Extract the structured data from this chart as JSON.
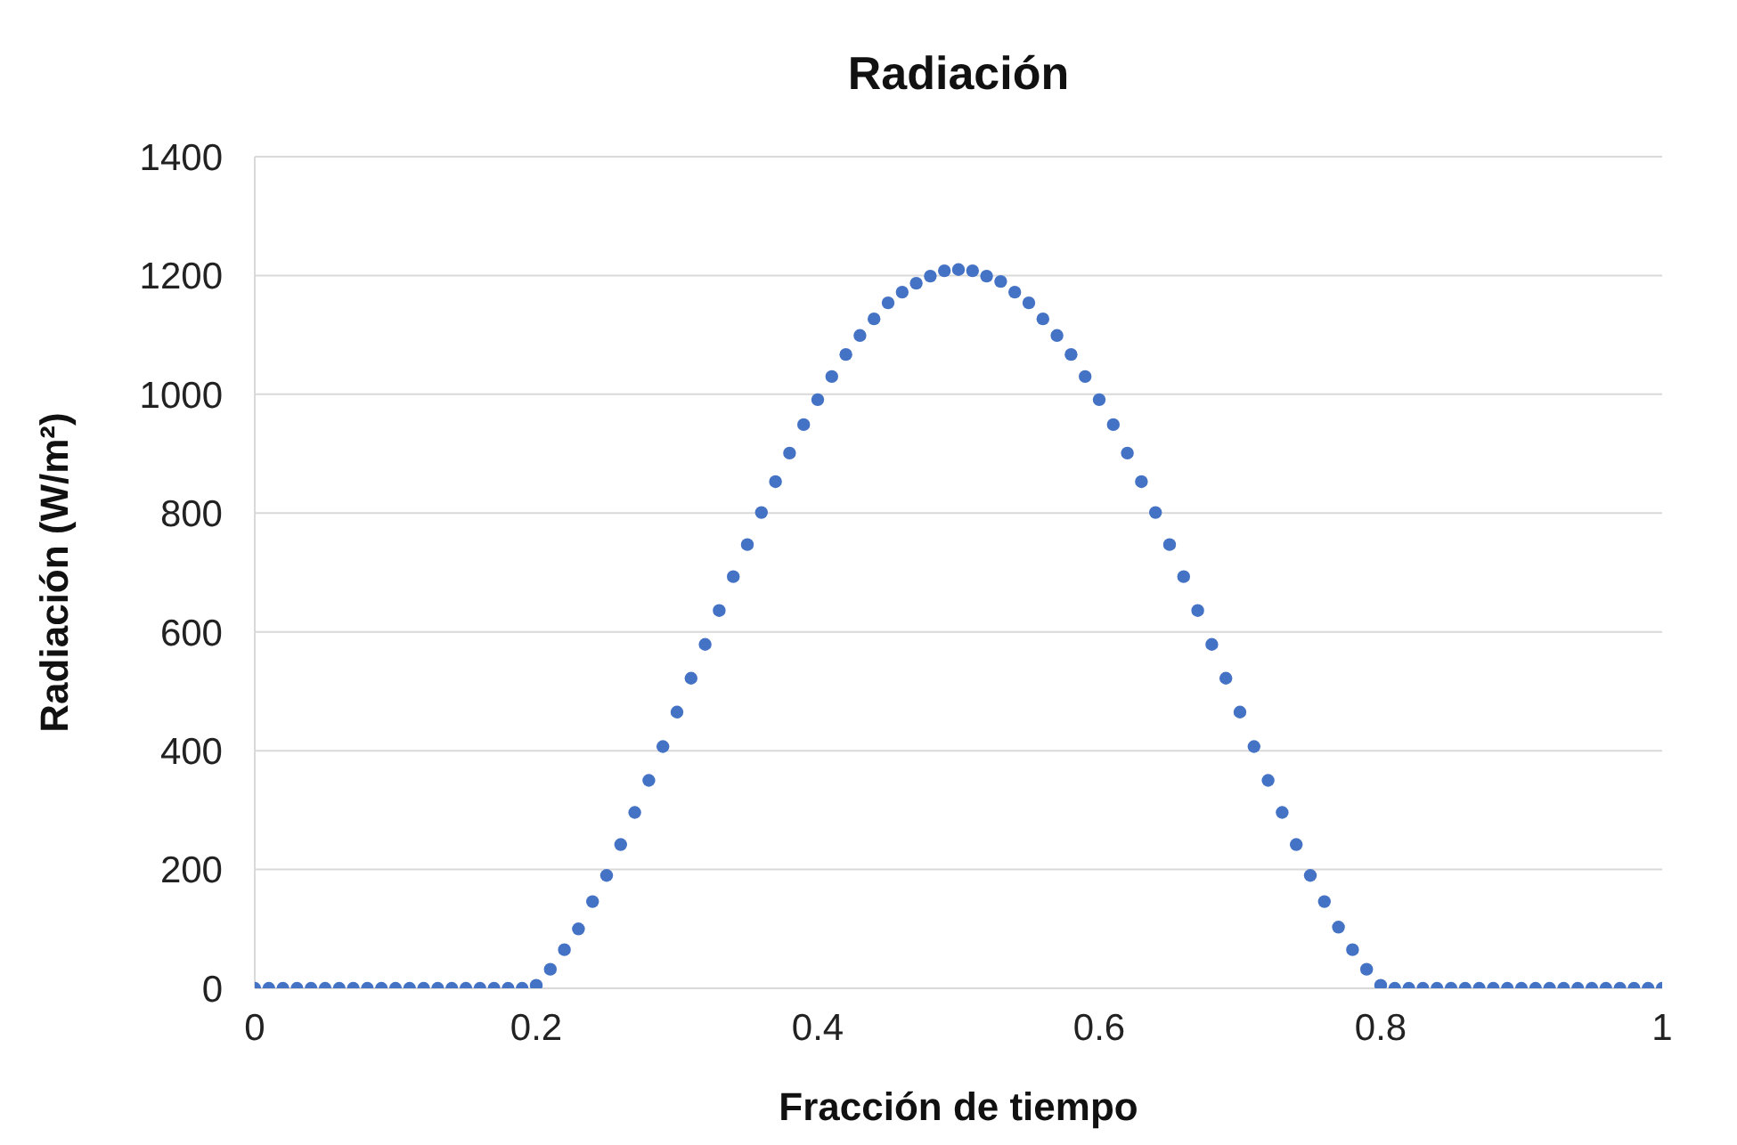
{
  "chart_data": {
    "type": "scatter",
    "title": "Radiación",
    "xlabel": "Fracción de tiempo",
    "ylabel": "Radiación (W/m²)",
    "x": [
      0,
      0.01,
      0.02,
      0.03,
      0.04,
      0.05,
      0.06,
      0.07,
      0.08,
      0.09,
      0.1,
      0.11,
      0.12,
      0.13,
      0.14,
      0.15,
      0.16,
      0.17,
      0.18,
      0.19,
      0.2,
      0.21,
      0.22,
      0.23,
      0.24,
      0.25,
      0.26,
      0.27,
      0.28,
      0.29,
      0.3,
      0.31,
      0.32,
      0.33,
      0.34,
      0.35,
      0.36,
      0.37,
      0.38,
      0.39,
      0.4,
      0.41,
      0.42,
      0.43,
      0.44,
      0.45,
      0.46,
      0.47,
      0.48,
      0.49,
      0.5,
      0.51,
      0.52,
      0.53,
      0.54,
      0.55,
      0.56,
      0.57,
      0.58,
      0.59,
      0.6,
      0.61,
      0.62,
      0.63,
      0.64,
      0.65,
      0.66,
      0.67,
      0.68,
      0.69,
      0.7,
      0.71,
      0.72,
      0.73,
      0.74,
      0.75,
      0.76,
      0.77,
      0.78,
      0.79,
      0.8,
      0.81,
      0.82,
      0.83,
      0.84,
      0.85,
      0.86,
      0.87,
      0.88,
      0.89,
      0.9,
      0.91,
      0.92,
      0.93,
      0.94,
      0.95,
      0.96,
      0.97,
      0.98,
      0.99,
      1
    ],
    "values": [
      0,
      0,
      0,
      0,
      0,
      0,
      0,
      0,
      0,
      0,
      0,
      0,
      0,
      0,
      0,
      0,
      0,
      0,
      0,
      0,
      5,
      32,
      65,
      100,
      146,
      190,
      242,
      296,
      350,
      407,
      465,
      522,
      579,
      636,
      693,
      747,
      801,
      853,
      901,
      949,
      991,
      1030,
      1067,
      1099,
      1127,
      1154,
      1172,
      1187,
      1199,
      1208,
      1210,
      1208,
      1199,
      1190,
      1172,
      1154,
      1127,
      1099,
      1067,
      1030,
      991,
      949,
      901,
      853,
      801,
      747,
      693,
      636,
      579,
      522,
      465,
      407,
      350,
      296,
      242,
      190,
      146,
      103,
      65,
      32,
      5,
      0,
      0,
      0,
      0,
      0,
      0,
      0,
      0,
      0,
      0,
      0,
      0,
      0,
      0,
      0,
      0,
      0,
      0,
      0,
      0
    ],
    "color": "#4472c4",
    "marker": "circle",
    "xlim": [
      0,
      1
    ],
    "xticks": [
      0,
      0.2,
      0.4,
      0.6,
      0.8,
      1
    ],
    "ylim": [
      0,
      1400
    ],
    "yticks": [
      0,
      200,
      400,
      600,
      800,
      1000,
      1200,
      1400
    ],
    "grid": "y"
  }
}
